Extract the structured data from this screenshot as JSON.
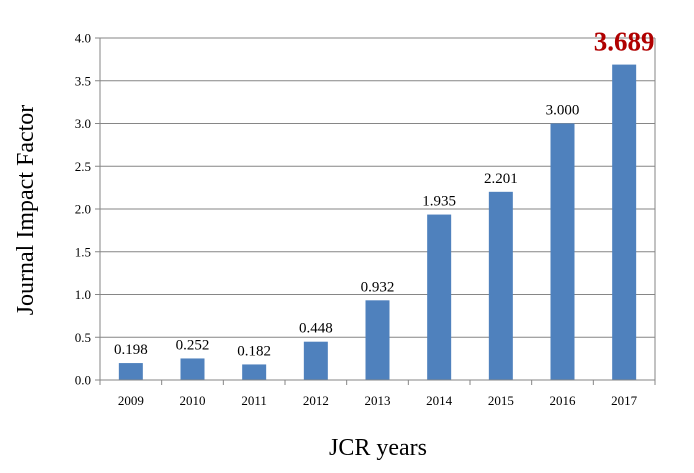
{
  "chart_data": {
    "type": "bar",
    "categories": [
      "2009",
      "2010",
      "2011",
      "2012",
      "2013",
      "2014",
      "2015",
      "2016",
      "2017"
    ],
    "values": [
      0.198,
      0.252,
      0.182,
      0.448,
      0.932,
      1.935,
      2.201,
      3.0,
      3.689
    ],
    "data_labels": [
      "0.198",
      "0.252",
      "0.182",
      "0.448",
      "0.932",
      "1.935",
      "2.201",
      "3.000",
      "3.689"
    ],
    "highlight_index": 8,
    "highlight_color": "#c00000",
    "bar_color": "#4f81bd",
    "xlabel": "JCR years",
    "ylabel": "Journal Impact Factor",
    "ylim": [
      0,
      4.0
    ],
    "yticks": [
      "0.0",
      "0.5",
      "1.0",
      "1.5",
      "2.0",
      "2.5",
      "3.0",
      "3.5",
      "4.0"
    ],
    "grid": true,
    "legend": "none"
  }
}
